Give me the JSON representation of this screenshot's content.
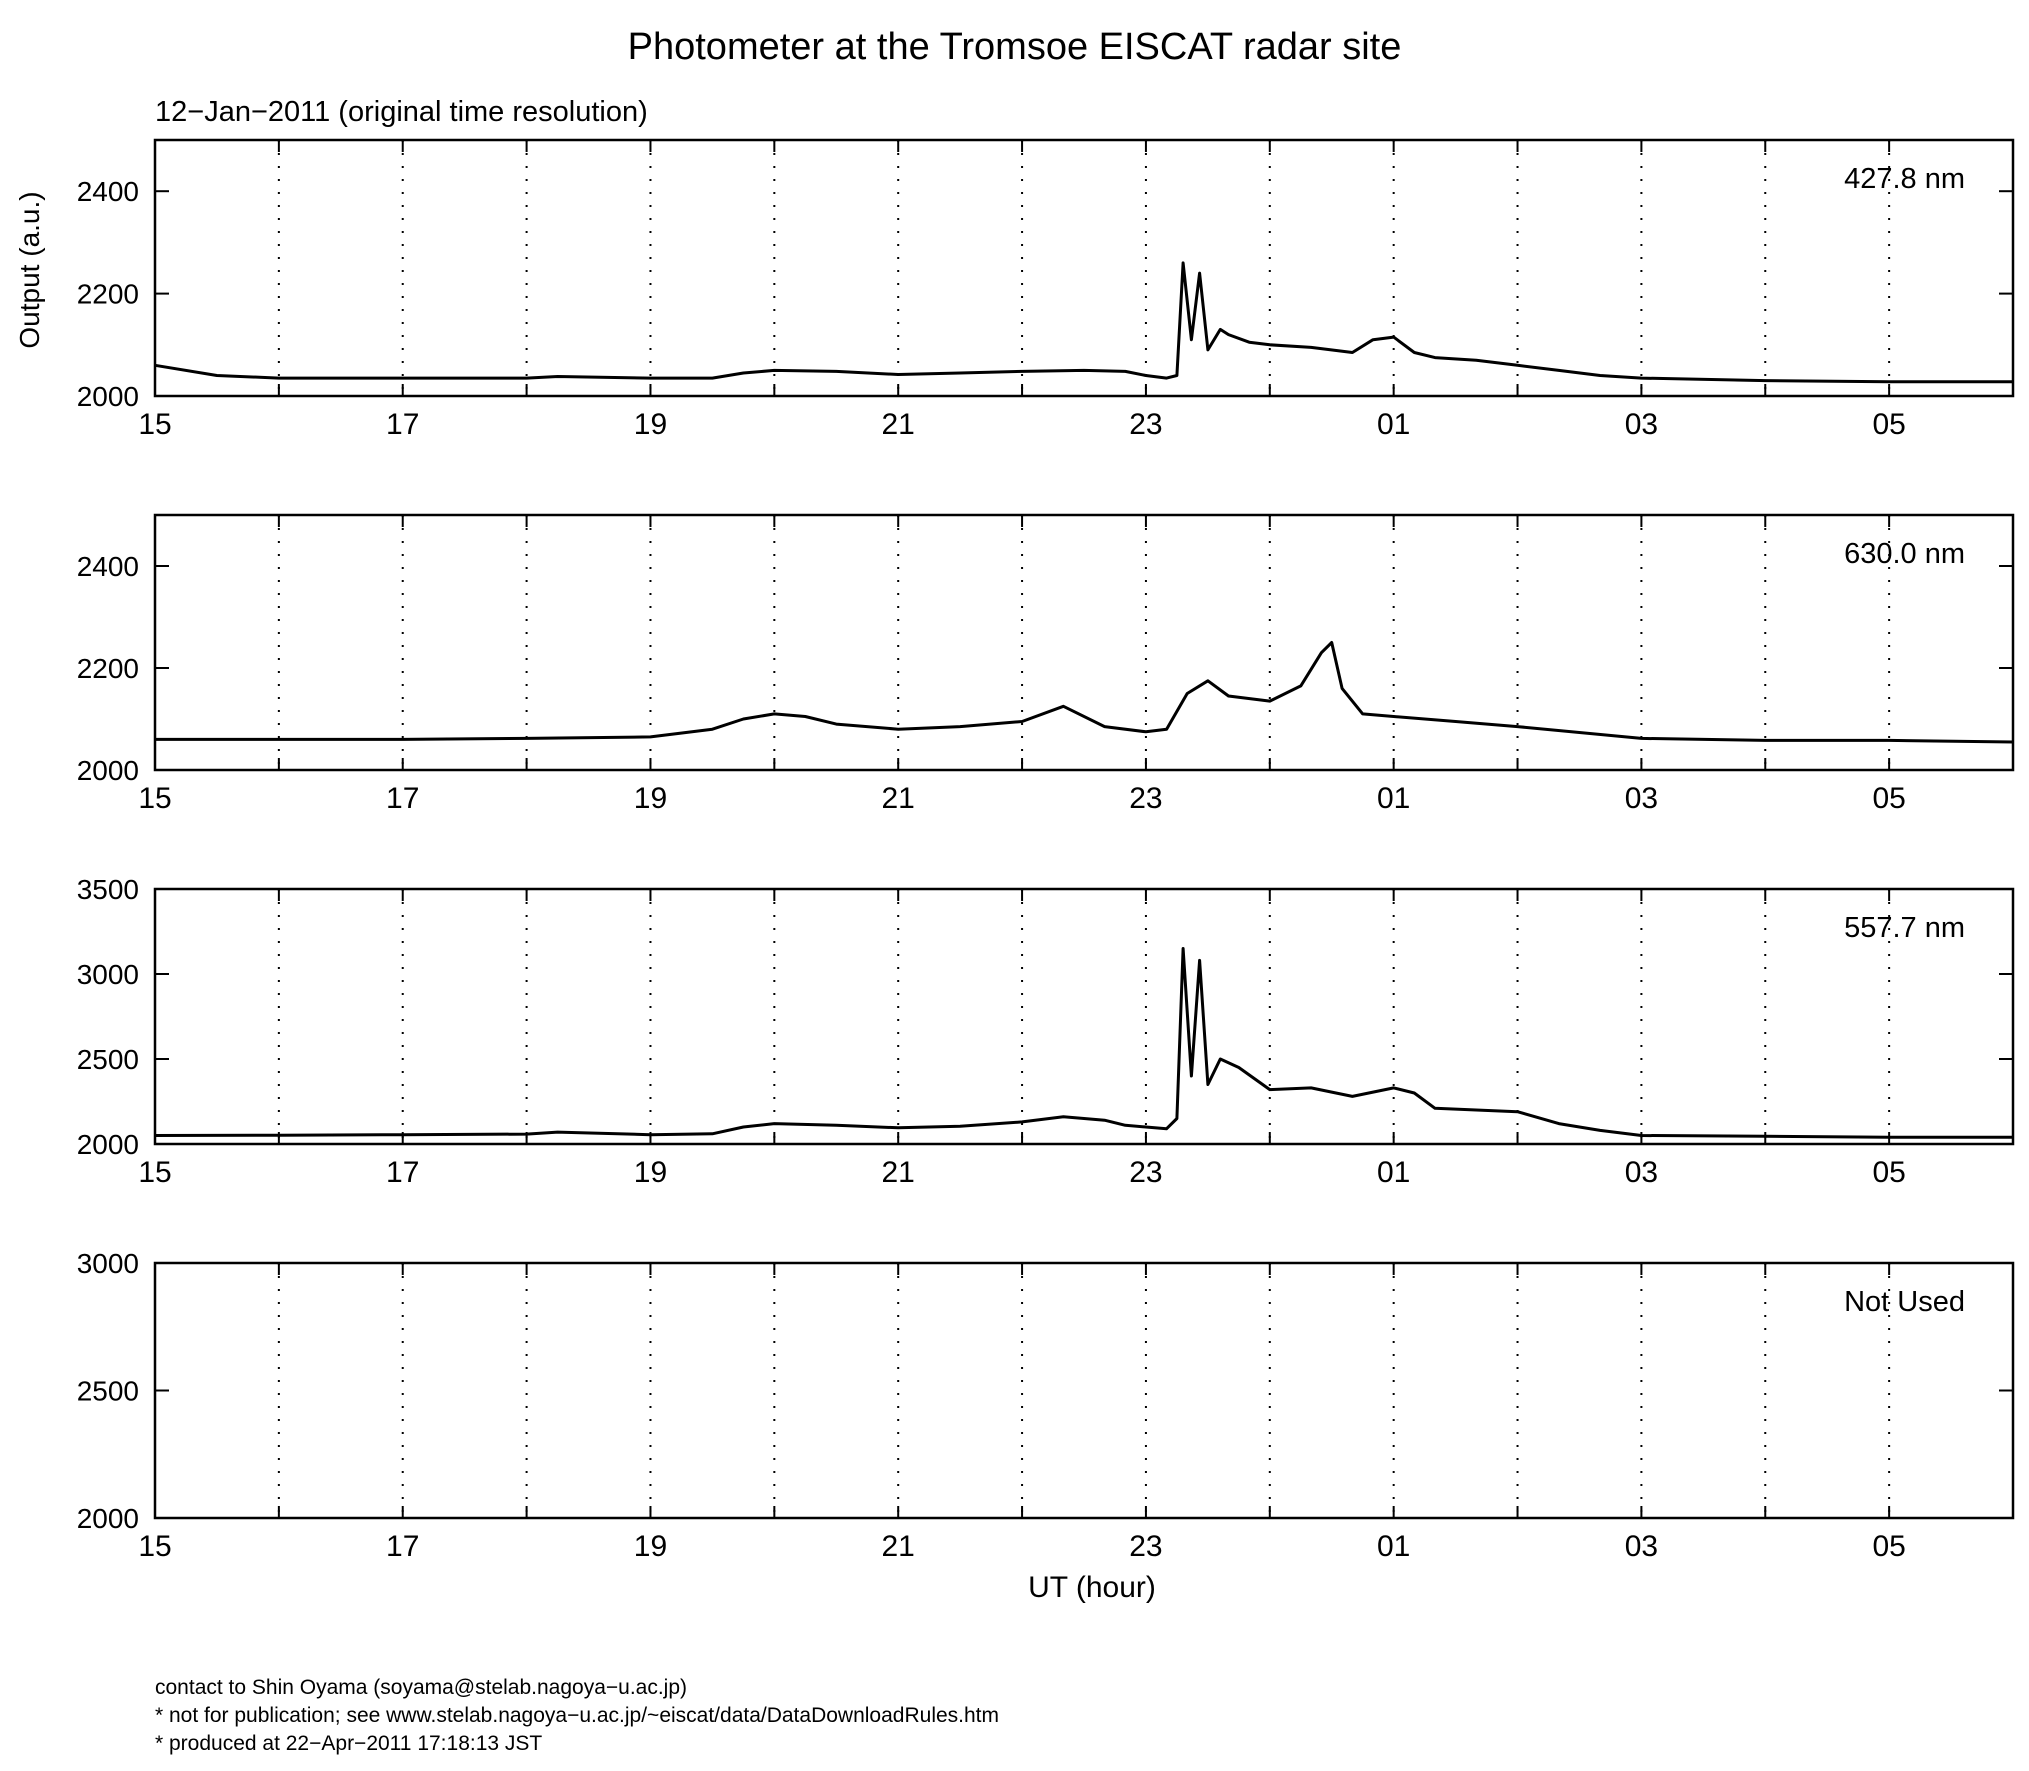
{
  "page": {
    "title": "Photometer at the Tromsoe EISCAT radar site",
    "subtitle": "12−Jan−2011 (original time resolution)",
    "ylabel": "Output (a.u.)",
    "xlabel": "UT (hour)"
  },
  "footer": {
    "line1": "contact to Shin Oyama (soyama@stelab.nagoya−u.ac.jp)",
    "line2": "* not for publication; see www.stelab.nagoya−u.ac.jp/~eiscat/data/DataDownloadRules.htm",
    "line3": "* produced at 22−Apr−2011 17:18:13 JST"
  },
  "chart_data": [
    {
      "type": "line",
      "label": "427.8 nm",
      "x_range": [
        "15:00",
        "06:00"
      ],
      "x_ticks": [
        "15",
        "17",
        "19",
        "21",
        "23",
        "01",
        "03",
        "05"
      ],
      "ylim": [
        2000,
        2500
      ],
      "y_ticks": [
        2000,
        2200,
        2400
      ],
      "grid": "dotted vertical every hour",
      "line_color": "#000000",
      "series": [
        {
          "x": [
            "15:00",
            "15:30",
            "16:00",
            "17:00",
            "18:00",
            "18:15",
            "19:00",
            "19:30",
            "19:45",
            "20:00",
            "20:30",
            "21:00",
            "21:30",
            "22:00",
            "22:30",
            "22:50",
            "23:00",
            "23:10",
            "23:15",
            "23:18",
            "23:22",
            "23:26",
            "23:30",
            "23:36",
            "23:40",
            "23:50",
            "00:00",
            "00:20",
            "00:40",
            "00:50",
            "01:00",
            "01:10",
            "01:20",
            "01:40",
            "02:00",
            "02:20",
            "02:40",
            "03:00",
            "04:00",
            "05:00",
            "06:00"
          ],
          "y": [
            2060,
            2040,
            2035,
            2035,
            2035,
            2038,
            2035,
            2035,
            2045,
            2050,
            2048,
            2042,
            2045,
            2048,
            2050,
            2048,
            2040,
            2035,
            2040,
            2260,
            2110,
            2240,
            2090,
            2130,
            2120,
            2105,
            2100,
            2095,
            2085,
            2110,
            2115,
            2085,
            2075,
            2070,
            2060,
            2050,
            2040,
            2035,
            2030,
            2028,
            2028
          ]
        }
      ]
    },
    {
      "type": "line",
      "label": "630.0 nm",
      "x_range": [
        "15:00",
        "06:00"
      ],
      "x_ticks": [
        "15",
        "17",
        "19",
        "21",
        "23",
        "01",
        "03",
        "05"
      ],
      "ylim": [
        2000,
        2500
      ],
      "y_ticks": [
        2000,
        2200,
        2400
      ],
      "grid": "dotted vertical every hour",
      "line_color": "#000000",
      "series": [
        {
          "x": [
            "15:00",
            "16:00",
            "17:00",
            "18:00",
            "19:00",
            "19:30",
            "19:45",
            "20:00",
            "20:15",
            "20:30",
            "21:00",
            "21:30",
            "22:00",
            "22:20",
            "22:40",
            "23:00",
            "23:10",
            "23:20",
            "23:30",
            "23:40",
            "24:00",
            "00:15",
            "00:25",
            "00:30",
            "00:35",
            "00:45",
            "01:00",
            "01:30",
            "02:00",
            "03:00",
            "04:00",
            "05:00",
            "06:00"
          ],
          "y": [
            2060,
            2060,
            2060,
            2062,
            2065,
            2080,
            2100,
            2110,
            2105,
            2090,
            2080,
            2085,
            2095,
            2125,
            2085,
            2075,
            2080,
            2150,
            2175,
            2145,
            2135,
            2165,
            2230,
            2250,
            2160,
            2110,
            2105,
            2095,
            2085,
            2062,
            2058,
            2058,
            2055
          ]
        }
      ]
    },
    {
      "type": "line",
      "label": "557.7 nm",
      "x_range": [
        "15:00",
        "06:00"
      ],
      "x_ticks": [
        "15",
        "17",
        "19",
        "21",
        "23",
        "01",
        "03",
        "05"
      ],
      "ylim": [
        2000,
        3500
      ],
      "y_ticks": [
        2000,
        2500,
        3000,
        3500
      ],
      "grid": "dotted vertical every hour",
      "line_color": "#000000",
      "series": [
        {
          "x": [
            "15:00",
            "16:00",
            "17:00",
            "18:00",
            "18:15",
            "19:00",
            "19:30",
            "19:45",
            "20:00",
            "20:30",
            "21:00",
            "21:30",
            "22:00",
            "22:20",
            "22:40",
            "22:50",
            "23:00",
            "23:10",
            "23:15",
            "23:18",
            "23:22",
            "23:26",
            "23:30",
            "23:36",
            "23:45",
            "24:00",
            "00:20",
            "00:40",
            "01:00",
            "01:10",
            "01:20",
            "01:40",
            "02:00",
            "02:20",
            "02:40",
            "03:00",
            "04:00",
            "05:00",
            "06:00"
          ],
          "y": [
            2050,
            2052,
            2055,
            2058,
            2070,
            2055,
            2060,
            2100,
            2120,
            2110,
            2095,
            2105,
            2130,
            2160,
            2140,
            2110,
            2100,
            2090,
            2150,
            3150,
            2400,
            3080,
            2350,
            2500,
            2450,
            2320,
            2330,
            2280,
            2330,
            2300,
            2210,
            2200,
            2190,
            2120,
            2080,
            2050,
            2045,
            2040,
            2040
          ]
        }
      ]
    },
    {
      "type": "line",
      "label": "Not Used",
      "x_range": [
        "15:00",
        "06:00"
      ],
      "x_ticks": [
        "15",
        "17",
        "19",
        "21",
        "23",
        "01",
        "03",
        "05"
      ],
      "ylim": [
        2000,
        3000
      ],
      "y_ticks": [
        2000,
        2500,
        3000
      ],
      "grid": "dotted vertical every hour",
      "line_color": "#000000",
      "series": []
    }
  ]
}
